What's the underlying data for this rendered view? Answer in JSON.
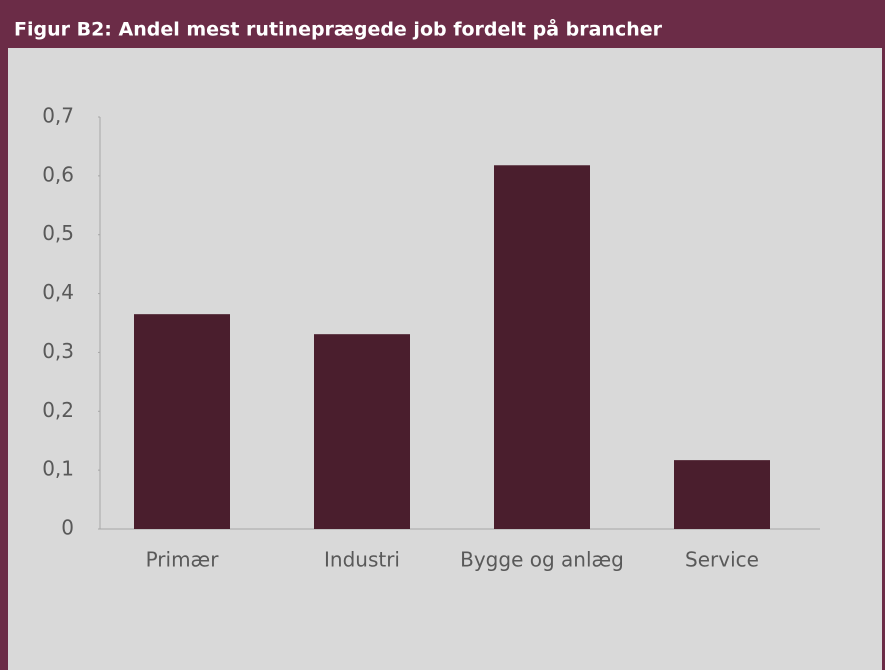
{
  "chart_data": {
    "type": "bar",
    "title": "Figur B2: Andel mest rutineprægede job fordelt på brancher",
    "categories": [
      "Primær",
      "Industri",
      "Bygge og anlæg",
      "Service"
    ],
    "values": [
      0.365,
      0.331,
      0.618,
      0.117
    ],
    "color": "#4a1e2d",
    "ylim": [
      0,
      0.7
    ],
    "yticks": [
      0,
      {
        "value": 0.1,
        "label": "0,1"
      },
      {
        "value": 0.2,
        "label": "0,2"
      },
      {
        "value": 0.3,
        "label": "0,3"
      },
      {
        "value": 0.4,
        "label": "0,4"
      },
      {
        "value": 0.5,
        "label": "0,5"
      },
      {
        "value": 0.6,
        "label": "0,6"
      },
      {
        "value": 0.7,
        "label": "0,7"
      }
    ],
    "grid": false
  }
}
